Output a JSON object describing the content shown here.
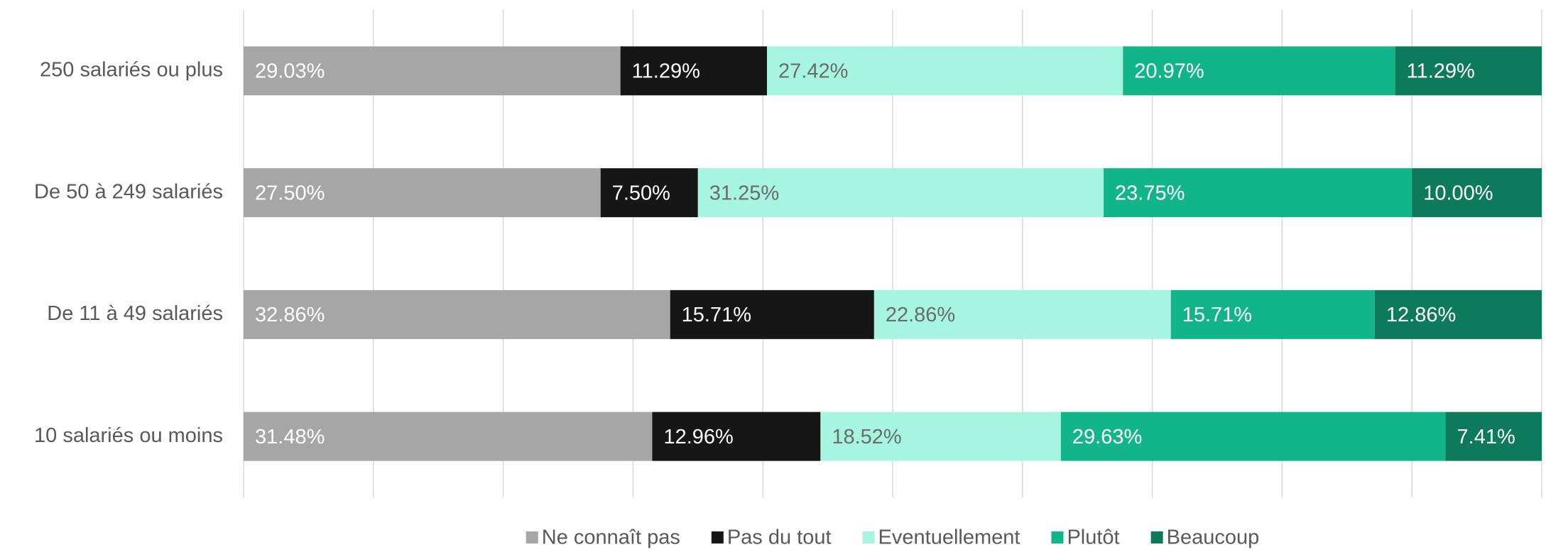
{
  "chart_data": {
    "type": "stacked_bar_horizontal",
    "categories": [
      "250 salariés ou plus",
      "De 50 à 249 salariés",
      "De 11 à 49 salariés",
      "10 salariés ou moins"
    ],
    "series": [
      {
        "name": "Ne connaît pas",
        "color": "#a6a6a6",
        "values": [
          29.03,
          27.5,
          32.86,
          31.48
        ],
        "value_labels": [
          "29.03%",
          "27.50%",
          "32.86%",
          "31.48%"
        ]
      },
      {
        "name": "Pas du tout",
        "color": "#161616",
        "values": [
          11.29,
          7.5,
          15.71,
          12.96
        ],
        "value_labels": [
          "11.29%",
          "7.50%",
          "15.71%",
          "12.96%"
        ]
      },
      {
        "name": "Eventuellement",
        "color": "#a6f5e1",
        "values": [
          27.42,
          31.25,
          22.86,
          18.52
        ],
        "value_labels": [
          "27.42%",
          "31.25%",
          "22.86%",
          "18.52%"
        ]
      },
      {
        "name": "Plutôt",
        "color": "#12b58a",
        "values": [
          20.97,
          23.75,
          15.71,
          29.63
        ],
        "value_labels": [
          "20.97%",
          "23.75%",
          "15.71%",
          "29.63%"
        ]
      },
      {
        "name": "Beaucoup",
        "color": "#0d7a5c",
        "values": [
          11.29,
          10.0,
          12.86,
          7.41
        ],
        "value_labels": [
          "11.29%",
          "10.00%",
          "12.86%",
          "7.41%"
        ]
      }
    ],
    "xlim": [
      0,
      100
    ],
    "xticks": [
      0,
      10,
      20,
      30,
      40,
      50,
      60,
      70,
      80,
      90,
      100
    ],
    "grid": true,
    "legend": "bottom"
  }
}
